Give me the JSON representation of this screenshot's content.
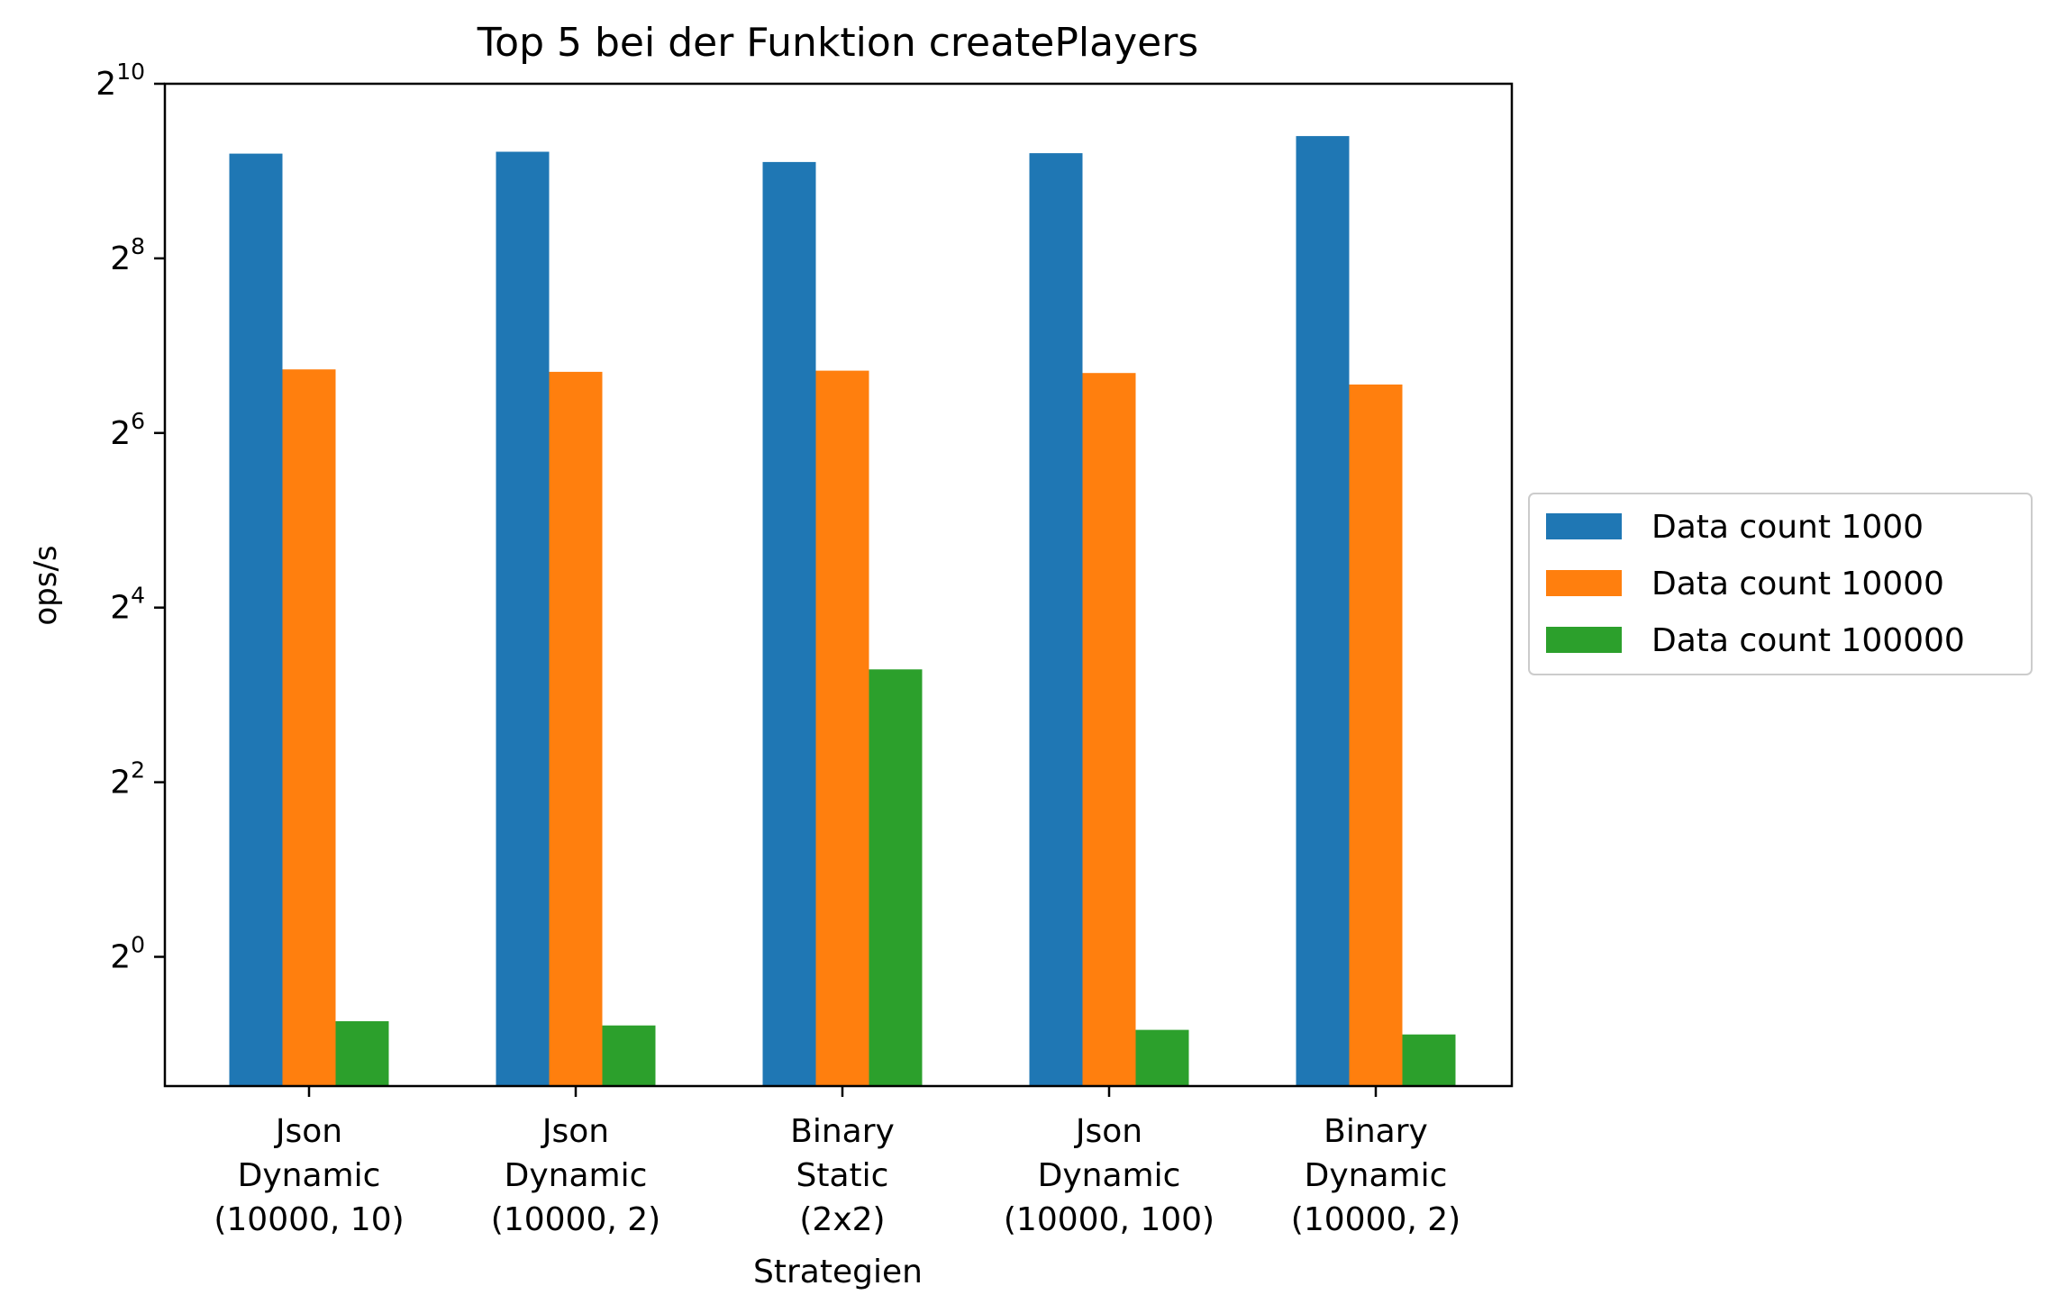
{
  "chart_data": {
    "type": "bar",
    "title": "Top 5 bei der Funktion createPlayers",
    "xlabel": "Strategien",
    "ylabel": "ops/s",
    "y_scale": "log2",
    "ylim_exponent": [
      -1.48,
      10
    ],
    "y_ticks": [
      {
        "base": "2",
        "exp": "10",
        "value": 1024
      },
      {
        "base": "2",
        "exp": "8",
        "value": 256
      },
      {
        "base": "2",
        "exp": "6",
        "value": 64
      },
      {
        "base": "2",
        "exp": "4",
        "value": 16
      },
      {
        "base": "2",
        "exp": "2",
        "value": 4
      },
      {
        "base": "2",
        "exp": "0",
        "value": 1
      }
    ],
    "categories": [
      [
        "Json",
        "Dynamic",
        "(10000, 10)"
      ],
      [
        "Json",
        "Dynamic",
        "(10000, 2)"
      ],
      [
        "Binary",
        "Static",
        "(2x2)"
      ],
      [
        "Json",
        "Dynamic",
        "(10000, 100)"
      ],
      [
        "Binary",
        "Dynamic",
        "(10000, 2)"
      ]
    ],
    "series": [
      {
        "name": "Data count 1000",
        "color": "#1f77b4",
        "values": [
          588,
          597,
          550,
          590,
          676
        ]
      },
      {
        "name": "Data count 10000",
        "color": "#ff7f0e",
        "values": [
          106,
          104,
          105,
          103,
          94
        ]
      },
      {
        "name": "Data count 100000",
        "color": "#2ca02c",
        "values": [
          0.6,
          0.58,
          9.8,
          0.56,
          0.54
        ]
      }
    ],
    "legend": "right-outside",
    "grid": false
  }
}
